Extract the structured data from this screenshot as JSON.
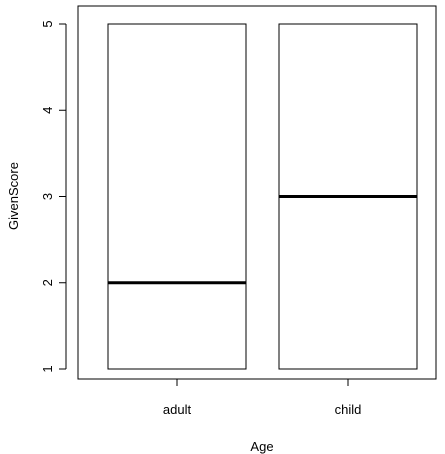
{
  "chart_data": {
    "type": "box",
    "title": "",
    "xlabel": "Age",
    "ylabel": "GivenScore",
    "ylim": [
      1,
      5
    ],
    "yticks": [
      "1",
      "2",
      "3",
      "4",
      "5"
    ],
    "categories": [
      "adult",
      "child"
    ],
    "boxes": [
      {
        "category": "adult",
        "min": 1,
        "q1": 1,
        "median": 2,
        "q3": 5,
        "max": 5
      },
      {
        "category": "child",
        "min": 1,
        "q1": 1,
        "median": 3,
        "q3": 5,
        "max": 5
      }
    ],
    "grid": false,
    "colors": {
      "stroke": "#000000",
      "fill": "#ffffff"
    }
  }
}
